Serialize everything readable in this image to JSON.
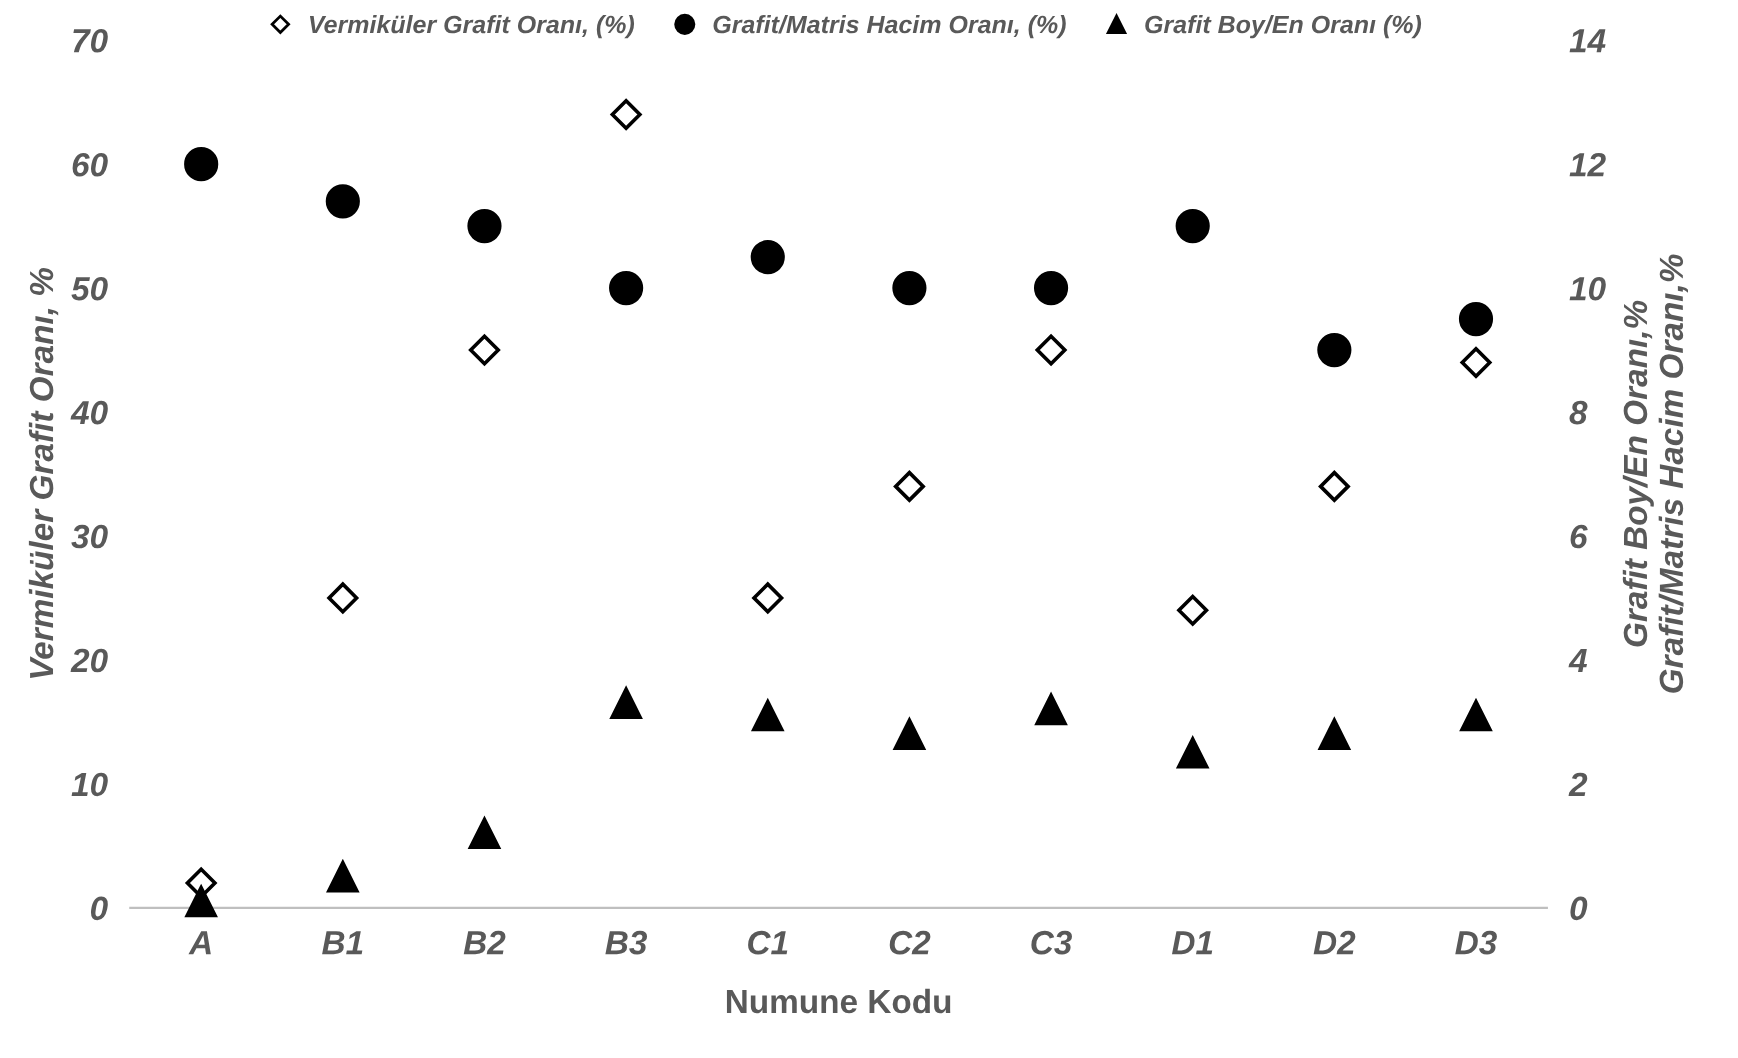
{
  "chart_data": {
    "type": "scatter",
    "xlabel": "Numune Kodu",
    "ylabel": "Vermiküler Grafit Oranı, %",
    "y2label": "Grafit Boy/En Oranı,%\nGrafit/Matris Hacim Oranı,%",
    "categories": [
      "A",
      "B1",
      "B2",
      "B3",
      "C1",
      "C2",
      "C3",
      "D1",
      "D2",
      "D3"
    ],
    "series": [
      {
        "name": "Vermiküler Grafit Oranı, (%)",
        "color": "#000000",
        "marker": "diamond",
        "values": [
          2,
          25,
          45,
          64,
          25,
          34,
          45,
          24,
          34,
          44
        ]
      },
      {
        "name": "Grafit/Matris Hacim Oranı, (%)",
        "color": "#000000",
        "marker": "circle",
        "axis": "y2",
        "values": [
          12,
          11.4,
          11,
          10,
          10.5,
          10,
          10,
          11,
          9,
          9.5
        ]
      },
      {
        "name": "Grafit Boy/En Oranı (%)",
        "color": "#000000",
        "marker": "triangle",
        "axis": "y2",
        "values": [
          0.1,
          0.5,
          1.2,
          3.3,
          3.1,
          2.8,
          3.2,
          2.5,
          2.8,
          3.1
        ]
      }
    ],
    "ylim": [
      0,
      70
    ],
    "yticks": [
      0,
      10,
      20,
      30,
      40,
      50,
      60,
      70
    ],
    "y2lim": [
      0,
      14
    ],
    "y2ticks": [
      0,
      2,
      4,
      6,
      8,
      10,
      12,
      14
    ],
    "legend": "top",
    "grid": false
  }
}
